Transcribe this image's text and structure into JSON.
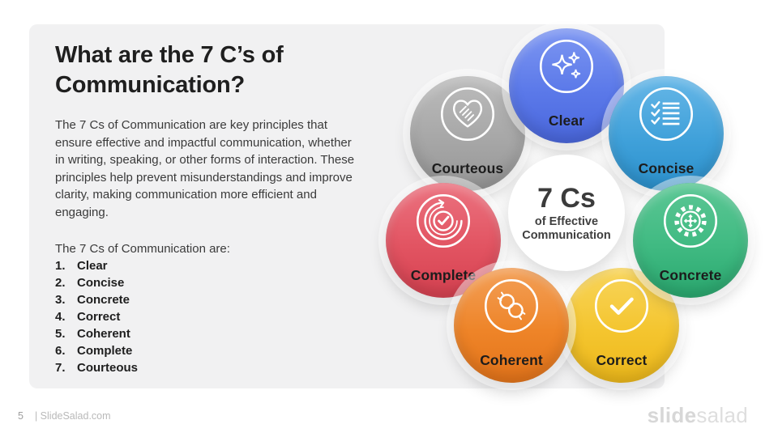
{
  "slide": {
    "title": "What are the 7 C’s of Communication?",
    "body_paragraph": "The 7 Cs of Communication are key principles that ensure effective and impactful communication, whether in writing, speaking, or other forms of interaction. These principles help prevent misunderstandings and improve clarity, making communication more efficient and engaging.",
    "list_intro": "The 7 Cs of Communication are:",
    "list_items": [
      "Clear",
      "Concise",
      "Concrete",
      "Correct",
      "Coherent",
      "Complete",
      "Courteous"
    ]
  },
  "diagram": {
    "center": {
      "title": "7 Cs",
      "subtitle": "of Effective Communication"
    },
    "items": [
      {
        "label": "Clear",
        "icon": "sparkles-icon",
        "fill": "#5b79e9",
        "light": "#7e97f2",
        "dark": "#4a67dd"
      },
      {
        "label": "Concise",
        "icon": "checklist-icon",
        "fill": "#40a1da",
        "light": "#67b7e7",
        "dark": "#2b90cc"
      },
      {
        "label": "Concrete",
        "icon": "gear-target-icon",
        "fill": "#40ba82",
        "light": "#5cc795",
        "dark": "#2aa86f"
      },
      {
        "label": "Correct",
        "icon": "check-icon",
        "fill": "#f4c52f",
        "light": "#f8d55c",
        "dark": "#edb81a"
      },
      {
        "label": "Coherent",
        "icon": "chain-link-icon",
        "fill": "#ee8428",
        "light": "#f3a058",
        "dark": "#e4741a"
      },
      {
        "label": "Complete",
        "icon": "check-swirl-icon",
        "fill": "#e25462",
        "light": "#eb7380",
        "dark": "#d64150"
      },
      {
        "label": "Courteous",
        "icon": "handshake-heart-icon",
        "fill": "#a7a7a7",
        "light": "#bcbcbc",
        "dark": "#969696"
      }
    ]
  },
  "footer": {
    "page_number": "5",
    "site_text": "| SlideSalad.com",
    "brand_bold": "slide",
    "brand_light": "salad"
  }
}
